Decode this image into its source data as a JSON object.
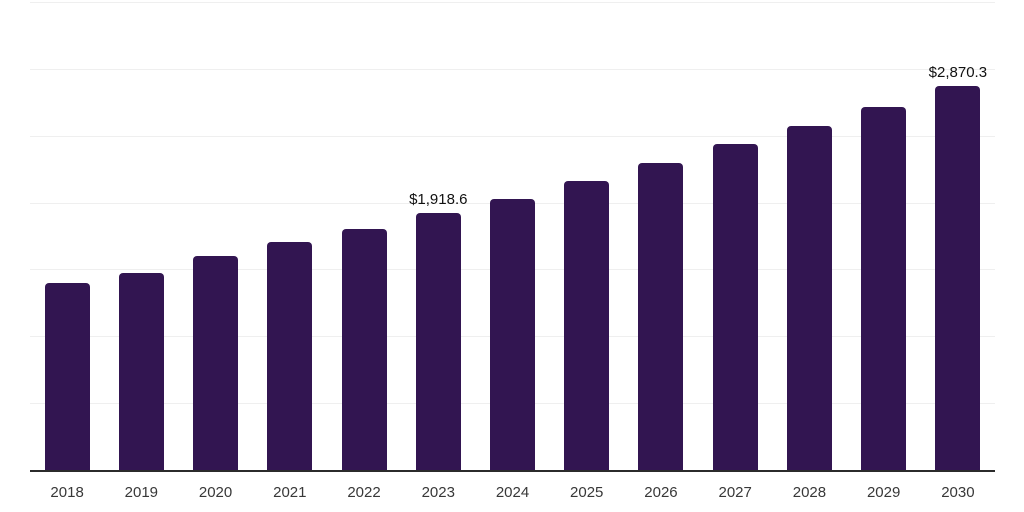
{
  "chart_data": {
    "type": "bar",
    "title": "",
    "xlabel": "",
    "ylabel": "",
    "categories": [
      "2018",
      "2019",
      "2020",
      "2021",
      "2022",
      "2023",
      "2024",
      "2025",
      "2026",
      "2027",
      "2028",
      "2029",
      "2030"
    ],
    "values": [
      1400,
      1470,
      1600,
      1705,
      1805,
      1918.6,
      2030,
      2165,
      2295,
      2435,
      2570,
      2715,
      2870.3
    ],
    "data_labels": [
      "",
      "",
      "",
      "",
      "",
      "$1,918.6",
      "",
      "",
      "",
      "",
      "",
      "",
      "$2,870.3"
    ],
    "ylim": [
      0,
      3500
    ],
    "y_gridline_step": 500,
    "y_axis_tick_labels_visible": false,
    "grid": true,
    "legend": "none"
  },
  "style": {
    "bar_color": "#321551",
    "grid_color": "#efefef",
    "axis_line_color": "#2b2b2b",
    "tick_label_color": "#383838",
    "data_label_color": "#111111",
    "background_color": "#ffffff"
  }
}
